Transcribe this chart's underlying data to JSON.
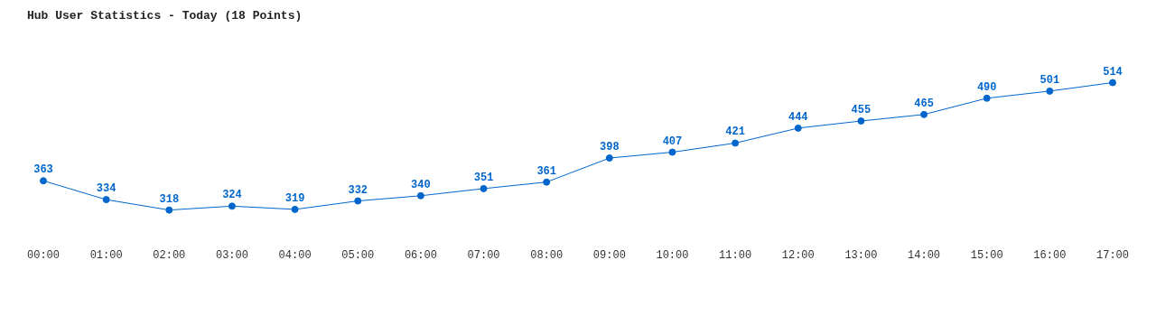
{
  "chart_data": {
    "type": "line",
    "title": "Hub User Statistics - Today (18 Points)",
    "categories": [
      "00:00",
      "01:00",
      "02:00",
      "03:00",
      "04:00",
      "05:00",
      "06:00",
      "07:00",
      "08:00",
      "09:00",
      "10:00",
      "11:00",
      "12:00",
      "13:00",
      "14:00",
      "15:00",
      "16:00",
      "17:00"
    ],
    "series": [
      {
        "color": "#0066cc",
        "values": [
          363,
          334,
          318,
          324,
          319,
          332,
          340,
          351,
          361,
          398,
          407,
          421,
          444,
          455,
          465,
          490,
          501,
          514
        ]
      }
    ],
    "data_labels": true,
    "marker": "circle",
    "grid": false,
    "legend": false
  }
}
